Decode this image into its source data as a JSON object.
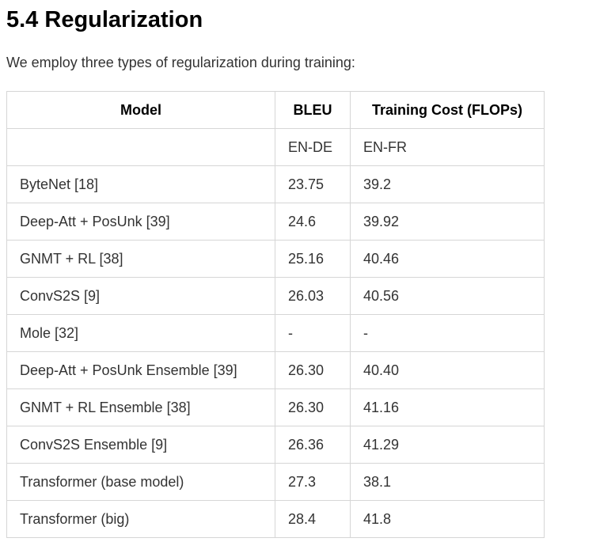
{
  "section": {
    "title": "5.4 Regularization",
    "intro": "We employ three types of regularization during training:"
  },
  "table": {
    "headers": [
      "Model",
      "BLEU",
      "Training Cost (FLOPs)"
    ],
    "subheader": [
      "",
      "EN-DE",
      "EN-FR"
    ],
    "rows": [
      [
        "ByteNet [18]",
        "23.75",
        "39.2"
      ],
      [
        "Deep-Att + PosUnk [39]",
        "24.6",
        "39.92"
      ],
      [
        "GNMT + RL [38]",
        "25.16",
        "40.46"
      ],
      [
        "ConvS2S [9]",
        "26.03",
        "40.56"
      ],
      [
        "Mole [32]",
        "-",
        "-"
      ],
      [
        "Deep-Att + PosUnk Ensemble [39]",
        "26.30",
        "40.40"
      ],
      [
        "GNMT + RL Ensemble [38]",
        "26.30",
        "41.16"
      ],
      [
        "ConvS2S Ensemble [9]",
        "26.36",
        "41.29"
      ],
      [
        "Transformer (base model)",
        "27.3",
        "38.1"
      ],
      [
        "Transformer (big)",
        "28.4",
        "41.8"
      ]
    ]
  }
}
